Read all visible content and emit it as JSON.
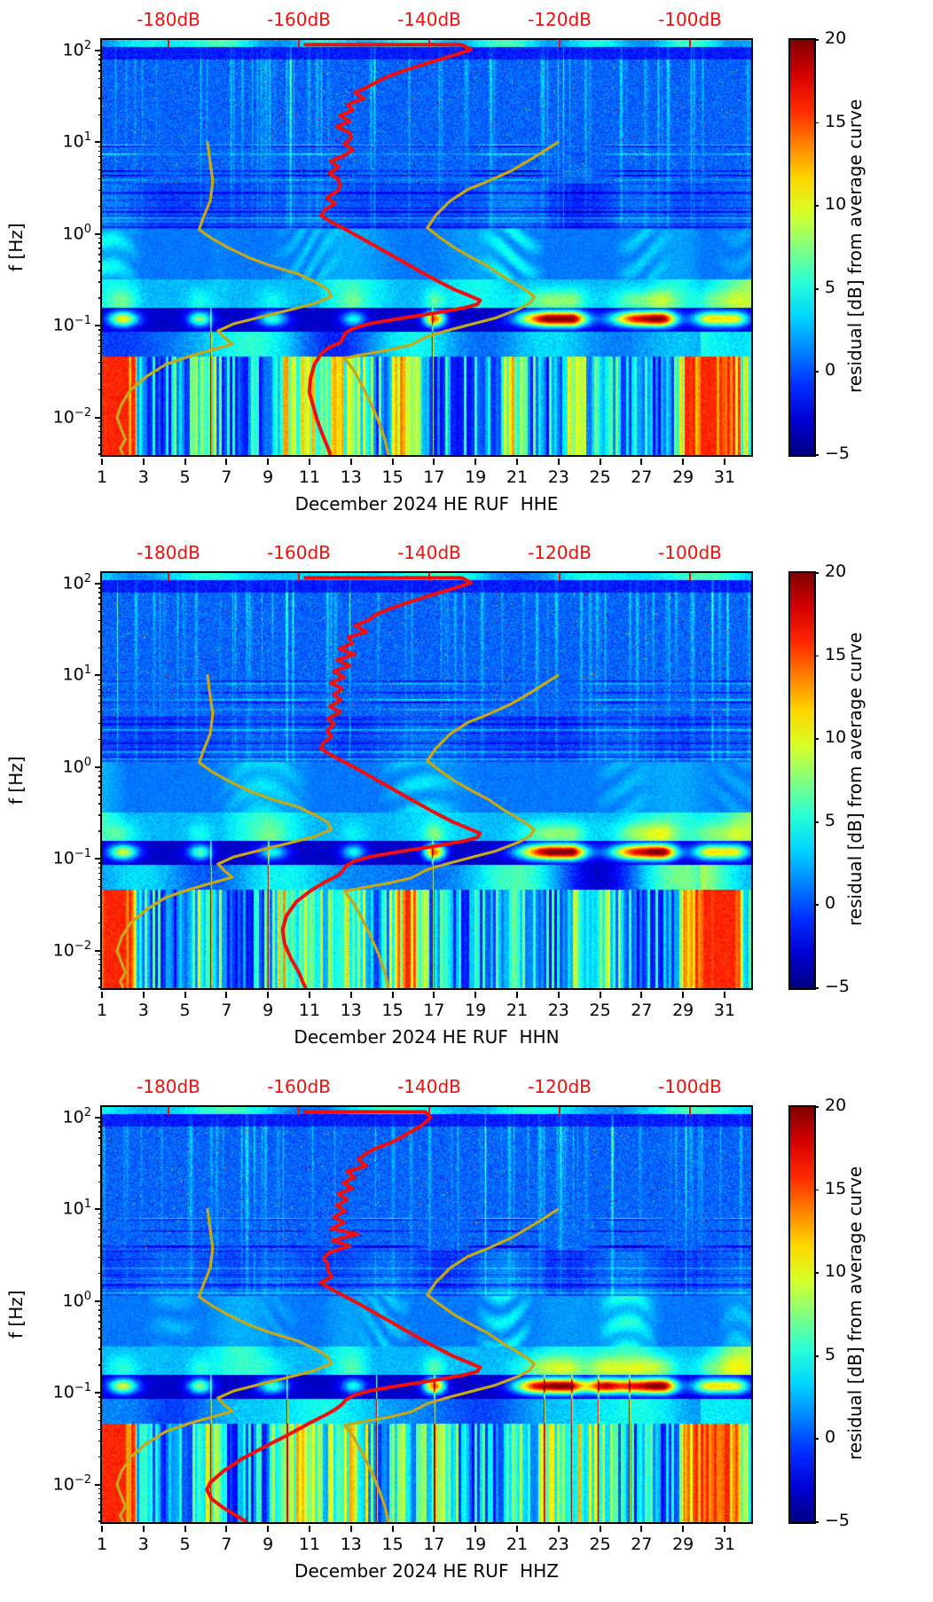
{
  "figure": {
    "background": "#ffffff",
    "ylabel": "f [Hz]",
    "y_tick_exponents": [
      2,
      1,
      0,
      -1,
      -2
    ],
    "y_range_hz": [
      0.0039,
      131
    ],
    "x_ticks_days": [
      1,
      3,
      5,
      7,
      9,
      11,
      13,
      15,
      17,
      19,
      21,
      23,
      25,
      27,
      29,
      31
    ],
    "x_range_days": [
      1,
      32.3
    ],
    "top_axis": {
      "labels": [
        "-180dB",
        "-160dB",
        "-140dB",
        "-120dB",
        "-100dB"
      ],
      "values_db": [
        -180,
        -160,
        -140,
        -120,
        -100
      ],
      "color": "#f10e0e",
      "db_range_across_plot": [
        -190.2,
        -90.6
      ]
    },
    "colorbar": {
      "label": "residual [dB] from average curve",
      "ticks": [
        20,
        15,
        10,
        5,
        0,
        -5
      ],
      "range": [
        -5,
        20
      ],
      "colormap": "jet"
    },
    "curve_colors": {
      "station_psd": "#f10e0e",
      "reference": "#c3a81c"
    }
  },
  "reference_curves_db_vs_hz": {
    "low_noise_reference": [
      [
        -174.0,
        10
      ],
      [
        -173.6,
        6.0
      ],
      [
        -173.2,
        3.8
      ],
      [
        -173.6,
        2.3
      ],
      [
        -174.6,
        1.55
      ],
      [
        -175.3,
        1.12
      ],
      [
        -173.4,
        0.9
      ],
      [
        -171.0,
        0.72
      ],
      [
        -167.6,
        0.55
      ],
      [
        -164.2,
        0.45
      ],
      [
        -160.2,
        0.37
      ],
      [
        -157.4,
        0.3
      ],
      [
        -155.6,
        0.25
      ],
      [
        -155.0,
        0.21
      ],
      [
        -157.6,
        0.175
      ],
      [
        -161.6,
        0.148
      ],
      [
        -166.2,
        0.123
      ],
      [
        -170.0,
        0.105
      ],
      [
        -172.4,
        0.088
      ],
      [
        -171.4,
        0.074
      ],
      [
        -170.2,
        0.063
      ],
      [
        -173.0,
        0.0555
      ],
      [
        -176.6,
        0.047
      ],
      [
        -180.4,
        0.038
      ],
      [
        -183.4,
        0.028
      ],
      [
        -185.8,
        0.02
      ],
      [
        -187.2,
        0.014
      ],
      [
        -187.9,
        0.01
      ],
      [
        -187.2,
        0.0074
      ],
      [
        -186.6,
        0.0058
      ],
      [
        -187.4,
        0.0046
      ],
      [
        -187.0,
        0.004
      ]
    ],
    "high_noise_reference": [
      [
        -120.3,
        10
      ],
      [
        -124.0,
        6.8
      ],
      [
        -127.4,
        4.9
      ],
      [
        -131.2,
        3.7
      ],
      [
        -134.0,
        3.1
      ],
      [
        -136.8,
        2.3
      ],
      [
        -139.0,
        1.6
      ],
      [
        -140.3,
        1.17
      ],
      [
        -138.4,
        0.92
      ],
      [
        -136.0,
        0.7
      ],
      [
        -133.4,
        0.55
      ],
      [
        -131.0,
        0.45
      ],
      [
        -128.8,
        0.35
      ],
      [
        -126.6,
        0.285
      ],
      [
        -124.8,
        0.235
      ],
      [
        -123.9,
        0.208
      ],
      [
        -124.5,
        0.178
      ],
      [
        -126.3,
        0.152
      ],
      [
        -129.8,
        0.122
      ],
      [
        -134.0,
        0.102
      ],
      [
        -137.7,
        0.087
      ],
      [
        -140.2,
        0.077
      ],
      [
        -142.8,
        0.062
      ],
      [
        -146.2,
        0.0545
      ],
      [
        -150.2,
        0.0485
      ],
      [
        -153.0,
        0.0445
      ],
      [
        -151.6,
        0.033
      ],
      [
        -150.4,
        0.023
      ],
      [
        -149.0,
        0.0145
      ],
      [
        -147.8,
        0.0092
      ],
      [
        -146.8,
        0.0058
      ],
      [
        -146.3,
        0.004
      ]
    ]
  },
  "chart_data": [
    {
      "type": "heatmap",
      "subtype": "spectrogram",
      "station": "HE RUF",
      "component": "HHE",
      "xlabel": "December 2024 HE RUF  HHE",
      "seed": 3,
      "station_psd_db_vs_hz": [
        [
          -159,
          116
        ],
        [
          -135,
          116
        ],
        [
          -133.6,
          103
        ],
        [
          -136,
          90
        ],
        [
          -139.5,
          76
        ],
        [
          -144,
          60
        ],
        [
          -148,
          46
        ],
        [
          -151,
          35
        ],
        [
          -149.8,
          30
        ],
        [
          -152.6,
          26
        ],
        [
          -151.4,
          22.5
        ],
        [
          -153.6,
          19.5
        ],
        [
          -151.8,
          17
        ],
        [
          -154,
          14.8
        ],
        [
          -152.4,
          12.8
        ],
        [
          -154.6,
          11.1
        ],
        [
          -152.8,
          9.6
        ],
        [
          -154.9,
          8.3
        ],
        [
          -153.3,
          7.2
        ],
        [
          -155,
          6.2
        ],
        [
          -153.6,
          5.4
        ],
        [
          -155.2,
          4.6
        ],
        [
          -154,
          4.0
        ],
        [
          -155.4,
          3.4
        ],
        [
          -154.4,
          2.95
        ],
        [
          -155.8,
          2.5
        ],
        [
          -154.8,
          2.15
        ],
        [
          -156.3,
          1.85
        ],
        [
          -156.6,
          1.6
        ],
        [
          -155,
          1.35
        ],
        [
          -152.8,
          1.12
        ],
        [
          -150.6,
          0.92
        ],
        [
          -148.4,
          0.75
        ],
        [
          -146,
          0.6
        ],
        [
          -143.6,
          0.48
        ],
        [
          -141.2,
          0.385
        ],
        [
          -138.6,
          0.305
        ],
        [
          -136.2,
          0.25
        ],
        [
          -134,
          0.215
        ],
        [
          -132.2,
          0.19
        ],
        [
          -132.6,
          0.172
        ],
        [
          -134.6,
          0.157
        ],
        [
          -139,
          0.138
        ],
        [
          -144.6,
          0.12
        ],
        [
          -149,
          0.106
        ],
        [
          -151.6,
          0.094
        ],
        [
          -152.8,
          0.084
        ],
        [
          -153.2,
          0.075
        ],
        [
          -153.6,
          0.066
        ],
        [
          -155.4,
          0.058
        ],
        [
          -156.6,
          0.049
        ],
        [
          -157.6,
          0.038
        ],
        [
          -158.2,
          0.027
        ],
        [
          -158.4,
          0.019
        ],
        [
          -157.8,
          0.0135
        ],
        [
          -157.2,
          0.0095
        ],
        [
          -156.4,
          0.0066
        ],
        [
          -155.6,
          0.0048
        ],
        [
          -155.2,
          0.004
        ]
      ],
      "microseism_hot_days": [
        [
          2.0,
          14,
          0.5
        ],
        [
          5.7,
          11,
          0.4
        ],
        [
          9.2,
          9,
          0.5
        ],
        [
          13.1,
          8,
          0.4
        ],
        [
          17.0,
          18,
          0.35
        ],
        [
          22.3,
          20,
          0.9
        ],
        [
          23.5,
          19,
          0.6
        ],
        [
          26.8,
          20,
          0.9
        ],
        [
          28.0,
          15,
          0.5
        ],
        [
          30.3,
          14,
          0.6
        ],
        [
          31.5,
          12,
          0.5
        ]
      ],
      "low_freq_noisy_days": [
        [
          1.3,
          12
        ],
        [
          2.1,
          11
        ],
        [
          6.0,
          6
        ],
        [
          9.8,
          7
        ],
        [
          10.9,
          8
        ],
        [
          12.3,
          7
        ],
        [
          13.3,
          6
        ],
        [
          15.3,
          7
        ],
        [
          15.9,
          8
        ],
        [
          20.8,
          7
        ],
        [
          23.8,
          6
        ],
        [
          25.2,
          5
        ],
        [
          29.3,
          9
        ],
        [
          30.2,
          12
        ],
        [
          31.2,
          11
        ]
      ],
      "red_needle_days": [
        6.2,
        16.9
      ]
    },
    {
      "type": "heatmap",
      "subtype": "spectrogram",
      "station": "HE RUF",
      "component": "HHN",
      "xlabel": "December 2024 HE RUF  HHN",
      "seed": 7,
      "station_psd_db_vs_hz": [
        [
          -159,
          116
        ],
        [
          -135,
          116
        ],
        [
          -133.6,
          103
        ],
        [
          -136,
          90
        ],
        [
          -139.5,
          76
        ],
        [
          -144,
          60
        ],
        [
          -148,
          46
        ],
        [
          -151,
          35
        ],
        [
          -149.8,
          30
        ],
        [
          -152.6,
          26
        ],
        [
          -151.4,
          22.5
        ],
        [
          -153.6,
          19.5
        ],
        [
          -151.8,
          17
        ],
        [
          -154,
          14.8
        ],
        [
          -152.4,
          12.8
        ],
        [
          -154.6,
          11.1
        ],
        [
          -152.8,
          9.6
        ],
        [
          -154.9,
          8.3
        ],
        [
          -153.3,
          7.2
        ],
        [
          -155,
          6.2
        ],
        [
          -153.6,
          5.4
        ],
        [
          -155.2,
          4.6
        ],
        [
          -154,
          4.0
        ],
        [
          -155.4,
          3.4
        ],
        [
          -154.4,
          2.95
        ],
        [
          -155.8,
          2.5
        ],
        [
          -154.8,
          2.15
        ],
        [
          -156.3,
          1.85
        ],
        [
          -156.6,
          1.6
        ],
        [
          -155,
          1.35
        ],
        [
          -152.8,
          1.12
        ],
        [
          -150.6,
          0.92
        ],
        [
          -148.4,
          0.75
        ],
        [
          -146,
          0.6
        ],
        [
          -143.6,
          0.48
        ],
        [
          -141.2,
          0.385
        ],
        [
          -138.6,
          0.305
        ],
        [
          -136.2,
          0.25
        ],
        [
          -134,
          0.215
        ],
        [
          -132.2,
          0.19
        ],
        [
          -132.6,
          0.172
        ],
        [
          -134.6,
          0.157
        ],
        [
          -139,
          0.138
        ],
        [
          -144.6,
          0.12
        ],
        [
          -149,
          0.106
        ],
        [
          -151.6,
          0.094
        ],
        [
          -152.8,
          0.084
        ],
        [
          -153.2,
          0.075
        ],
        [
          -154,
          0.066
        ],
        [
          -156,
          0.056
        ],
        [
          -158.2,
          0.045
        ],
        [
          -160.4,
          0.034
        ],
        [
          -161.9,
          0.024
        ],
        [
          -162.5,
          0.017
        ],
        [
          -162.2,
          0.012
        ],
        [
          -161.2,
          0.0082
        ],
        [
          -160,
          0.0058
        ],
        [
          -159.3,
          0.0044
        ],
        [
          -159,
          0.004
        ]
      ],
      "microseism_hot_days": [
        [
          2.0,
          13,
          0.5
        ],
        [
          5.7,
          10,
          0.4
        ],
        [
          9.2,
          8,
          0.5
        ],
        [
          13.1,
          8,
          0.4
        ],
        [
          17.0,
          18,
          0.35
        ],
        [
          22.3,
          20,
          0.9
        ],
        [
          23.5,
          18,
          0.6
        ],
        [
          26.8,
          20,
          0.9
        ],
        [
          28.0,
          16,
          0.5
        ],
        [
          30.3,
          14,
          0.6
        ],
        [
          31.5,
          12,
          0.5
        ]
      ],
      "low_freq_noisy_days": [
        [
          1.3,
          12
        ],
        [
          2.1,
          11
        ],
        [
          6.0,
          6
        ],
        [
          9.8,
          7
        ],
        [
          11.0,
          8
        ],
        [
          12.4,
          7
        ],
        [
          13.4,
          6
        ],
        [
          15.4,
          7
        ],
        [
          16.0,
          8
        ],
        [
          20.9,
          7
        ],
        [
          23.9,
          6
        ],
        [
          25.3,
          5
        ],
        [
          29.4,
          9
        ],
        [
          30.3,
          12
        ],
        [
          31.2,
          11
        ]
      ],
      "red_needle_days": [
        6.2,
        9.0,
        16.9
      ]
    },
    {
      "type": "heatmap",
      "subtype": "spectrogram",
      "station": "HE RUF",
      "component": "HHZ",
      "xlabel": "December 2024 HE RUF  HHZ",
      "seed": 13,
      "station_psd_db_vs_hz": [
        [
          -159,
          116
        ],
        [
          -140.6,
          116
        ],
        [
          -139.8,
          100
        ],
        [
          -141.2,
          82
        ],
        [
          -144.2,
          62
        ],
        [
          -148,
          46
        ],
        [
          -151,
          35
        ],
        [
          -149.8,
          30
        ],
        [
          -152.6,
          26
        ],
        [
          -151.4,
          22.5
        ],
        [
          -153.6,
          19.5
        ],
        [
          -151.8,
          17
        ],
        [
          -154,
          14.8
        ],
        [
          -152.4,
          12.8
        ],
        [
          -154.6,
          11.1
        ],
        [
          -152.8,
          9.6
        ],
        [
          -154.9,
          8.3
        ],
        [
          -153.3,
          7.2
        ],
        [
          -155,
          6.2
        ],
        [
          -153.6,
          5.4
        ],
        [
          -155.2,
          4.6
        ],
        [
          -154,
          4.0
        ],
        [
          -155.4,
          3.4
        ],
        [
          -154.4,
          2.95
        ],
        [
          -155.8,
          2.5
        ],
        [
          -154.8,
          2.15
        ],
        [
          -156.3,
          1.85
        ],
        [
          -156.6,
          1.6
        ],
        [
          -155,
          1.35
        ],
        [
          -152.8,
          1.12
        ],
        [
          -150.6,
          0.92
        ],
        [
          -148.4,
          0.75
        ],
        [
          -146,
          0.6
        ],
        [
          -143.6,
          0.48
        ],
        [
          -141.2,
          0.385
        ],
        [
          -138.6,
          0.305
        ],
        [
          -136.2,
          0.25
        ],
        [
          -134,
          0.215
        ],
        [
          -132.2,
          0.19
        ],
        [
          -132.6,
          0.172
        ],
        [
          -134.6,
          0.157
        ],
        [
          -139,
          0.138
        ],
        [
          -144.6,
          0.12
        ],
        [
          -149,
          0.106
        ],
        [
          -151.6,
          0.094
        ],
        [
          -152.8,
          0.084
        ],
        [
          -153.4,
          0.075
        ],
        [
          -154.4,
          0.066
        ],
        [
          -156,
          0.057
        ],
        [
          -158.6,
          0.046
        ],
        [
          -161.6,
          0.035
        ],
        [
          -165.2,
          0.026
        ],
        [
          -168.8,
          0.019
        ],
        [
          -171.6,
          0.014
        ],
        [
          -173.6,
          0.0105
        ],
        [
          -174.1,
          0.0088
        ],
        [
          -173.4,
          0.007
        ],
        [
          -171.6,
          0.0056
        ],
        [
          -169.6,
          0.0046
        ],
        [
          -168.2,
          0.004
        ]
      ],
      "microseism_hot_days": [
        [
          2.0,
          13,
          0.5
        ],
        [
          5.7,
          11,
          0.4
        ],
        [
          9.2,
          9,
          0.5
        ],
        [
          13.1,
          8,
          0.4
        ],
        [
          17.0,
          18,
          0.35
        ],
        [
          22.0,
          20,
          0.8
        ],
        [
          23.4,
          20,
          0.6
        ],
        [
          25.1,
          18,
          0.6
        ],
        [
          26.8,
          20,
          0.9
        ],
        [
          28.0,
          16,
          0.5
        ],
        [
          30.3,
          14,
          0.6
        ],
        [
          31.5,
          12,
          0.5
        ]
      ],
      "low_freq_noisy_days": [
        [
          1.3,
          11
        ],
        [
          2.1,
          10
        ],
        [
          6.0,
          7
        ],
        [
          9.9,
          8
        ],
        [
          11.0,
          8
        ],
        [
          12.4,
          7
        ],
        [
          13.4,
          6
        ],
        [
          15.4,
          7
        ],
        [
          17.3,
          9
        ],
        [
          20.9,
          7
        ],
        [
          22.5,
          8
        ],
        [
          23.9,
          7
        ],
        [
          25.3,
          6
        ],
        [
          29.4,
          9
        ],
        [
          30.3,
          11
        ],
        [
          31.2,
          10
        ]
      ],
      "red_needle_days": [
        6.2,
        9.9,
        14.2,
        17.0,
        22.3,
        23.6,
        24.9,
        26.4
      ]
    }
  ]
}
